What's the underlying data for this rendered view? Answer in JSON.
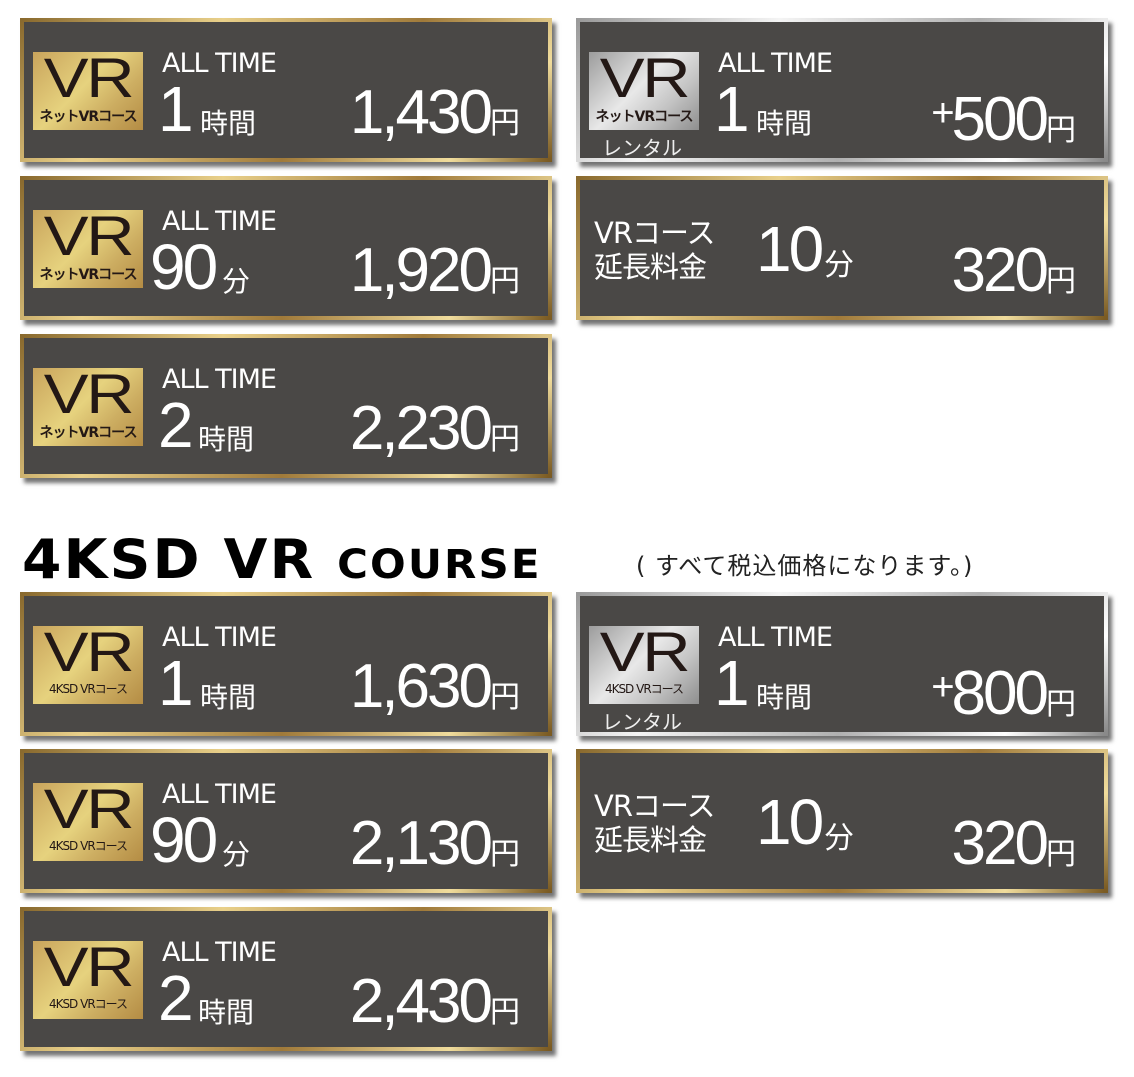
{
  "section2_heading": {
    "big": "4KSD VR ",
    "small": "COURSE"
  },
  "tax_note": "( すべて税込価格になります。)",
  "cards": [
    {
      "id": "net-1h",
      "style": "gold",
      "badge_sub": "ネットVRコース",
      "label": "ALL TIME",
      "num": "1",
      "unit": "時間",
      "price": "1,430",
      "yen": "円"
    },
    {
      "id": "net-90m",
      "style": "gold",
      "badge_sub": "ネットVRコース",
      "label": "ALL TIME",
      "num": "90",
      "unit": "分",
      "price": "1,920",
      "yen": "円"
    },
    {
      "id": "net-2h",
      "style": "gold",
      "badge_sub": "ネットVRコース",
      "label": "ALL TIME",
      "num": "2",
      "unit": "時間",
      "price": "2,230",
      "yen": "円"
    },
    {
      "id": "net-rental",
      "style": "silver",
      "badge_sub": "ネットVRコース",
      "rental": "レンタル",
      "label": "ALL TIME",
      "num": "1",
      "unit": "時間",
      "plus": "+",
      "price": "500",
      "yen": "円"
    },
    {
      "id": "net-ext",
      "style": "gold",
      "ext": [
        "VRコース",
        "延長料金"
      ],
      "num": "10",
      "unit": "分",
      "price": "320",
      "yen": "円"
    },
    {
      "id": "4k-1h",
      "style": "gold",
      "badge_sub": "4KSD VRコース",
      "label": "ALL TIME",
      "num": "1",
      "unit": "時間",
      "price": "1,630",
      "yen": "円"
    },
    {
      "id": "4k-90m",
      "style": "gold",
      "badge_sub": "4KSD VRコース",
      "label": "ALL TIME",
      "num": "90",
      "unit": "分",
      "price": "2,130",
      "yen": "円"
    },
    {
      "id": "4k-2h",
      "style": "gold",
      "badge_sub": "4KSD VRコース",
      "label": "ALL TIME",
      "num": "2",
      "unit": "時間",
      "price": "2,430",
      "yen": "円"
    },
    {
      "id": "4k-rental",
      "style": "silver",
      "badge_sub": "4KSD VRコース",
      "rental": "レンタル",
      "label": "ALL TIME",
      "num": "1",
      "unit": "時間",
      "plus": "+",
      "price": "800",
      "yen": "円"
    },
    {
      "id": "4k-ext",
      "style": "gold",
      "ext": [
        "VRコース",
        "延長料金"
      ],
      "num": "10",
      "unit": "分",
      "price": "320",
      "yen": "円"
    }
  ],
  "badge_text": "VR"
}
